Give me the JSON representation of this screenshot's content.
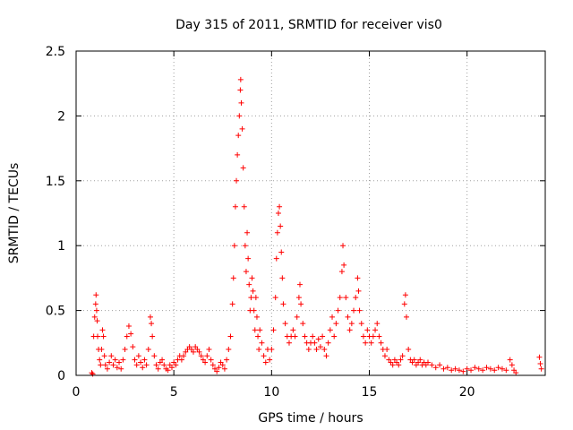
{
  "chart_data": {
    "type": "scatter",
    "title": "Day 315 of 2011, SRMTID for receiver vis0",
    "xlabel": "GPS time / hours",
    "ylabel": "SRMTID / TECUs",
    "xlim": [
      0,
      24
    ],
    "ylim": [
      0,
      2.5
    ],
    "xticks": [
      0,
      5,
      10,
      15,
      20
    ],
    "yticks": [
      0,
      0.5,
      1,
      1.5,
      2,
      2.5
    ],
    "xtick_labels": [
      "0",
      "5",
      "10",
      "15",
      "20"
    ],
    "ytick_labels": [
      "0",
      "0.5",
      "1",
      "1.5",
      "2",
      "2.5"
    ],
    "grid": true,
    "marker": "plus",
    "color": "#ff0000",
    "series": [
      {
        "name": "vis0",
        "points": [
          [
            0.8,
            0.02
          ],
          [
            0.85,
            0.01
          ],
          [
            0.9,
            0.3
          ],
          [
            0.95,
            0.45
          ],
          [
            1.0,
            0.55
          ],
          [
            1.02,
            0.62
          ],
          [
            1.05,
            0.5
          ],
          [
            1.08,
            0.42
          ],
          [
            1.1,
            0.3
          ],
          [
            1.15,
            0.2
          ],
          [
            1.2,
            0.12
          ],
          [
            1.25,
            0.08
          ],
          [
            1.3,
            0.2
          ],
          [
            1.35,
            0.35
          ],
          [
            1.4,
            0.3
          ],
          [
            1.45,
            0.15
          ],
          [
            1.5,
            0.08
          ],
          [
            1.6,
            0.05
          ],
          [
            1.7,
            0.1
          ],
          [
            1.8,
            0.15
          ],
          [
            1.9,
            0.08
          ],
          [
            2.0,
            0.12
          ],
          [
            2.1,
            0.06
          ],
          [
            2.2,
            0.1
          ],
          [
            2.3,
            0.05
          ],
          [
            2.4,
            0.12
          ],
          [
            2.5,
            0.2
          ],
          [
            2.6,
            0.3
          ],
          [
            2.7,
            0.38
          ],
          [
            2.8,
            0.32
          ],
          [
            2.9,
            0.22
          ],
          [
            3.0,
            0.12
          ],
          [
            3.1,
            0.08
          ],
          [
            3.2,
            0.15
          ],
          [
            3.3,
            0.1
          ],
          [
            3.4,
            0.06
          ],
          [
            3.5,
            0.12
          ],
          [
            3.6,
            0.08
          ],
          [
            3.7,
            0.2
          ],
          [
            3.8,
            0.45
          ],
          [
            3.85,
            0.4
          ],
          [
            3.9,
            0.3
          ],
          [
            4.0,
            0.15
          ],
          [
            4.1,
            0.08
          ],
          [
            4.2,
            0.05
          ],
          [
            4.3,
            0.1
          ],
          [
            4.4,
            0.12
          ],
          [
            4.5,
            0.08
          ],
          [
            4.6,
            0.05
          ],
          [
            4.7,
            0.04
          ],
          [
            4.8,
            0.08
          ],
          [
            4.9,
            0.06
          ],
          [
            5.0,
            0.1
          ],
          [
            5.1,
            0.08
          ],
          [
            5.2,
            0.12
          ],
          [
            5.3,
            0.15
          ],
          [
            5.4,
            0.12
          ],
          [
            5.5,
            0.15
          ],
          [
            5.6,
            0.18
          ],
          [
            5.7,
            0.2
          ],
          [
            5.8,
            0.22
          ],
          [
            5.9,
            0.2
          ],
          [
            6.0,
            0.18
          ],
          [
            6.1,
            0.22
          ],
          [
            6.2,
            0.2
          ],
          [
            6.3,
            0.18
          ],
          [
            6.4,
            0.15
          ],
          [
            6.5,
            0.12
          ],
          [
            6.6,
            0.1
          ],
          [
            6.7,
            0.15
          ],
          [
            6.8,
            0.2
          ],
          [
            6.9,
            0.12
          ],
          [
            7.0,
            0.08
          ],
          [
            7.1,
            0.05
          ],
          [
            7.2,
            0.03
          ],
          [
            7.3,
            0.06
          ],
          [
            7.4,
            0.1
          ],
          [
            7.5,
            0.08
          ],
          [
            7.6,
            0.05
          ],
          [
            7.7,
            0.12
          ],
          [
            7.8,
            0.2
          ],
          [
            7.9,
            0.3
          ],
          [
            8.0,
            0.55
          ],
          [
            8.05,
            0.75
          ],
          [
            8.1,
            1.0
          ],
          [
            8.15,
            1.3
          ],
          [
            8.2,
            1.5
          ],
          [
            8.25,
            1.7
          ],
          [
            8.3,
            1.85
          ],
          [
            8.35,
            2.0
          ],
          [
            8.4,
            2.2
          ],
          [
            8.42,
            2.28
          ],
          [
            8.45,
            2.1
          ],
          [
            8.5,
            1.9
          ],
          [
            8.55,
            1.6
          ],
          [
            8.6,
            1.3
          ],
          [
            8.65,
            1.0
          ],
          [
            8.7,
            0.8
          ],
          [
            8.75,
            1.1
          ],
          [
            8.8,
            0.9
          ],
          [
            8.85,
            0.7
          ],
          [
            8.9,
            0.5
          ],
          [
            8.95,
            0.6
          ],
          [
            9.0,
            0.75
          ],
          [
            9.05,
            0.65
          ],
          [
            9.1,
            0.5
          ],
          [
            9.15,
            0.35
          ],
          [
            9.2,
            0.6
          ],
          [
            9.25,
            0.45
          ],
          [
            9.3,
            0.3
          ],
          [
            9.35,
            0.2
          ],
          [
            9.4,
            0.35
          ],
          [
            9.5,
            0.25
          ],
          [
            9.6,
            0.15
          ],
          [
            9.7,
            0.1
          ],
          [
            9.8,
            0.2
          ],
          [
            9.9,
            0.12
          ],
          [
            10.0,
            0.2
          ],
          [
            10.1,
            0.35
          ],
          [
            10.2,
            0.6
          ],
          [
            10.25,
            0.9
          ],
          [
            10.3,
            1.1
          ],
          [
            10.35,
            1.25
          ],
          [
            10.4,
            1.3
          ],
          [
            10.45,
            1.15
          ],
          [
            10.5,
            0.95
          ],
          [
            10.55,
            0.75
          ],
          [
            10.6,
            0.55
          ],
          [
            10.7,
            0.4
          ],
          [
            10.8,
            0.3
          ],
          [
            10.9,
            0.25
          ],
          [
            11.0,
            0.3
          ],
          [
            11.1,
            0.35
          ],
          [
            11.2,
            0.3
          ],
          [
            11.3,
            0.45
          ],
          [
            11.4,
            0.6
          ],
          [
            11.45,
            0.7
          ],
          [
            11.5,
            0.55
          ],
          [
            11.6,
            0.4
          ],
          [
            11.7,
            0.3
          ],
          [
            11.8,
            0.25
          ],
          [
            11.9,
            0.2
          ],
          [
            12.0,
            0.25
          ],
          [
            12.1,
            0.3
          ],
          [
            12.2,
            0.25
          ],
          [
            12.3,
            0.2
          ],
          [
            12.4,
            0.28
          ],
          [
            12.5,
            0.22
          ],
          [
            12.6,
            0.3
          ],
          [
            12.7,
            0.2
          ],
          [
            12.8,
            0.15
          ],
          [
            12.9,
            0.25
          ],
          [
            13.0,
            0.35
          ],
          [
            13.1,
            0.45
          ],
          [
            13.2,
            0.3
          ],
          [
            13.3,
            0.4
          ],
          [
            13.4,
            0.5
          ],
          [
            13.5,
            0.6
          ],
          [
            13.6,
            0.8
          ],
          [
            13.65,
            1.0
          ],
          [
            13.7,
            0.85
          ],
          [
            13.8,
            0.6
          ],
          [
            13.9,
            0.45
          ],
          [
            14.0,
            0.35
          ],
          [
            14.1,
            0.4
          ],
          [
            14.2,
            0.5
          ],
          [
            14.3,
            0.6
          ],
          [
            14.4,
            0.75
          ],
          [
            14.45,
            0.65
          ],
          [
            14.5,
            0.5
          ],
          [
            14.6,
            0.4
          ],
          [
            14.7,
            0.3
          ],
          [
            14.8,
            0.25
          ],
          [
            14.9,
            0.35
          ],
          [
            15.0,
            0.3
          ],
          [
            15.1,
            0.25
          ],
          [
            15.2,
            0.3
          ],
          [
            15.3,
            0.35
          ],
          [
            15.4,
            0.4
          ],
          [
            15.5,
            0.3
          ],
          [
            15.6,
            0.25
          ],
          [
            15.7,
            0.2
          ],
          [
            15.8,
            0.15
          ],
          [
            15.9,
            0.2
          ],
          [
            16.0,
            0.12
          ],
          [
            16.1,
            0.1
          ],
          [
            16.2,
            0.08
          ],
          [
            16.3,
            0.12
          ],
          [
            16.4,
            0.1
          ],
          [
            16.5,
            0.08
          ],
          [
            16.6,
            0.12
          ],
          [
            16.7,
            0.15
          ],
          [
            16.8,
            0.55
          ],
          [
            16.85,
            0.62
          ],
          [
            16.9,
            0.45
          ],
          [
            17.0,
            0.2
          ],
          [
            17.1,
            0.12
          ],
          [
            17.2,
            0.1
          ],
          [
            17.3,
            0.12
          ],
          [
            17.4,
            0.08
          ],
          [
            17.5,
            0.1
          ],
          [
            17.6,
            0.12
          ],
          [
            17.7,
            0.08
          ],
          [
            17.8,
            0.1
          ],
          [
            17.9,
            0.08
          ],
          [
            18.0,
            0.1
          ],
          [
            18.2,
            0.08
          ],
          [
            18.4,
            0.06
          ],
          [
            18.6,
            0.08
          ],
          [
            18.8,
            0.05
          ],
          [
            19.0,
            0.06
          ],
          [
            19.2,
            0.04
          ],
          [
            19.4,
            0.05
          ],
          [
            19.6,
            0.04
          ],
          [
            19.8,
            0.03
          ],
          [
            20.0,
            0.05
          ],
          [
            20.2,
            0.04
          ],
          [
            20.4,
            0.06
          ],
          [
            20.6,
            0.05
          ],
          [
            20.8,
            0.04
          ],
          [
            21.0,
            0.06
          ],
          [
            21.2,
            0.05
          ],
          [
            21.4,
            0.04
          ],
          [
            21.6,
            0.06
          ],
          [
            21.8,
            0.05
          ],
          [
            22.0,
            0.04
          ],
          [
            22.2,
            0.12
          ],
          [
            22.3,
            0.08
          ],
          [
            22.4,
            0.04
          ],
          [
            22.5,
            0.02
          ],
          [
            23.7,
            0.14
          ],
          [
            23.75,
            0.09
          ],
          [
            23.8,
            0.05
          ]
        ]
      }
    ]
  }
}
